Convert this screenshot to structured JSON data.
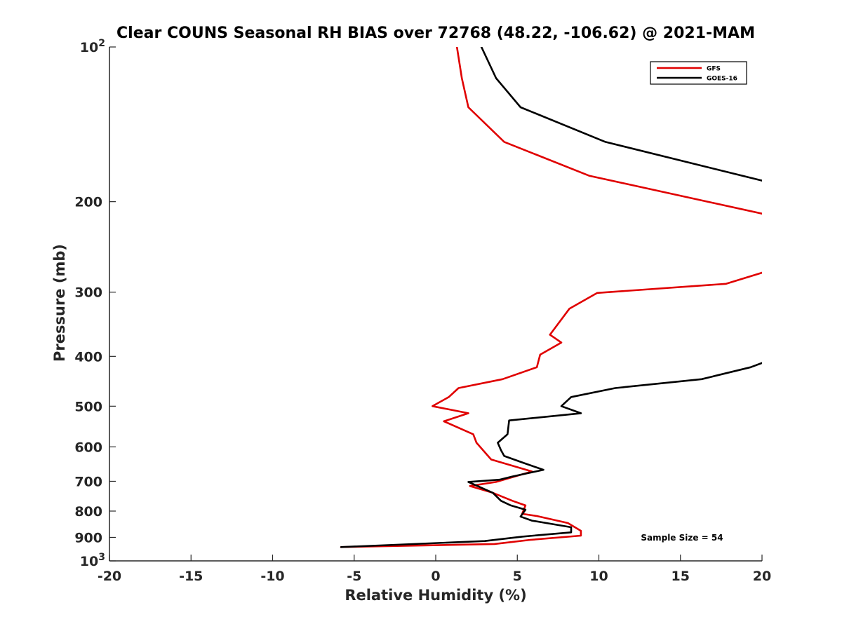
{
  "chart_data": {
    "type": "line",
    "title": "Clear COUNS Seasonal RH BIAS over 72768 (48.22, -106.62) @ 2021-MAM",
    "xlabel": "Relative Humidity (%)",
    "ylabel": "Pressure (mb)",
    "xlim": [
      -20,
      20
    ],
    "ylim": [
      1000,
      100
    ],
    "y_scale": "log",
    "y_reversed": true,
    "grid": false,
    "x_ticks": [
      "-20",
      "-15",
      "-10",
      "-5",
      "0",
      "5",
      "10",
      "15",
      "20"
    ],
    "y_ticks": [
      {
        "value": 100,
        "base": "10",
        "exp": "2"
      },
      {
        "value": 200,
        "base": "200",
        "exp": ""
      },
      {
        "value": 300,
        "base": "300",
        "exp": ""
      },
      {
        "value": 400,
        "base": "400",
        "exp": ""
      },
      {
        "value": 500,
        "base": "500",
        "exp": ""
      },
      {
        "value": 600,
        "base": "600",
        "exp": ""
      },
      {
        "value": 700,
        "base": "700",
        "exp": ""
      },
      {
        "value": 800,
        "base": "800",
        "exp": ""
      },
      {
        "value": 900,
        "base": "900",
        "exp": ""
      },
      {
        "value": 1000,
        "base": "10",
        "exp": "3"
      }
    ],
    "legend_position": "top-right",
    "annotation": "Sample Size = 54",
    "series": [
      {
        "name": "GFS",
        "color": "#e00000",
        "segments": [
          [
            [
              1.3,
              100
            ],
            [
              1.6,
              115
            ],
            [
              2.0,
              131
            ],
            [
              4.2,
              153
            ],
            [
              9.4,
              178
            ],
            [
              20,
              211
            ]
          ],
          [
            [
              20,
              275
            ],
            [
              17.8,
              289
            ],
            [
              9.9,
              301
            ],
            [
              8.2,
              323
            ],
            [
              7.0,
              363
            ],
            [
              7.7,
              376
            ],
            [
              6.4,
              397
            ],
            [
              6.2,
              420
            ],
            [
              4.1,
              443
            ],
            [
              1.4,
              461
            ],
            [
              0.8,
              480
            ],
            [
              -0.2,
              500
            ],
            [
              2.0,
              516
            ],
            [
              0.5,
              535
            ],
            [
              2.3,
              567
            ],
            [
              2.5,
              589
            ],
            [
              2.9,
              609
            ],
            [
              3.4,
              635
            ],
            [
              5.9,
              670
            ],
            [
              3.7,
              702
            ],
            [
              2.1,
              715
            ],
            [
              3.5,
              737
            ],
            [
              4.7,
              764
            ],
            [
              5.5,
              780
            ],
            [
              5.3,
              810
            ],
            [
              6.2,
              818
            ],
            [
              8.1,
              844
            ],
            [
              8.9,
              874
            ],
            [
              8.9,
              893
            ],
            [
              5.8,
              910
            ],
            [
              3.6,
              927
            ],
            [
              -5.8,
              940
            ]
          ]
        ]
      },
      {
        "name": "GOES-16",
        "color": "#000000",
        "segments": [
          [
            [
              2.8,
              100
            ],
            [
              3.7,
              115
            ],
            [
              5.2,
              131
            ],
            [
              10.4,
              153
            ],
            [
              20,
              182
            ]
          ],
          [
            [
              20,
              412
            ],
            [
              19.3,
              420
            ],
            [
              16.3,
              443
            ],
            [
              11.0,
              461
            ],
            [
              8.3,
              480
            ],
            [
              7.7,
              500
            ],
            [
              8.9,
              516
            ],
            [
              4.5,
              533
            ],
            [
              4.4,
              567
            ],
            [
              3.8,
              589
            ],
            [
              4.0,
              609
            ],
            [
              4.2,
              625
            ],
            [
              5.4,
              645
            ],
            [
              6.6,
              665
            ],
            [
              4.7,
              685
            ],
            [
              3.9,
              695
            ],
            [
              2.0,
              702
            ],
            [
              3.5,
              737
            ],
            [
              4.0,
              764
            ],
            [
              4.6,
              780
            ],
            [
              5.5,
              795
            ],
            [
              5.2,
              820
            ],
            [
              5.9,
              835
            ],
            [
              8.3,
              860
            ],
            [
              8.3,
              880
            ],
            [
              5.3,
              897
            ],
            [
              3.0,
              915
            ],
            [
              -5.8,
              940
            ]
          ]
        ]
      }
    ]
  }
}
